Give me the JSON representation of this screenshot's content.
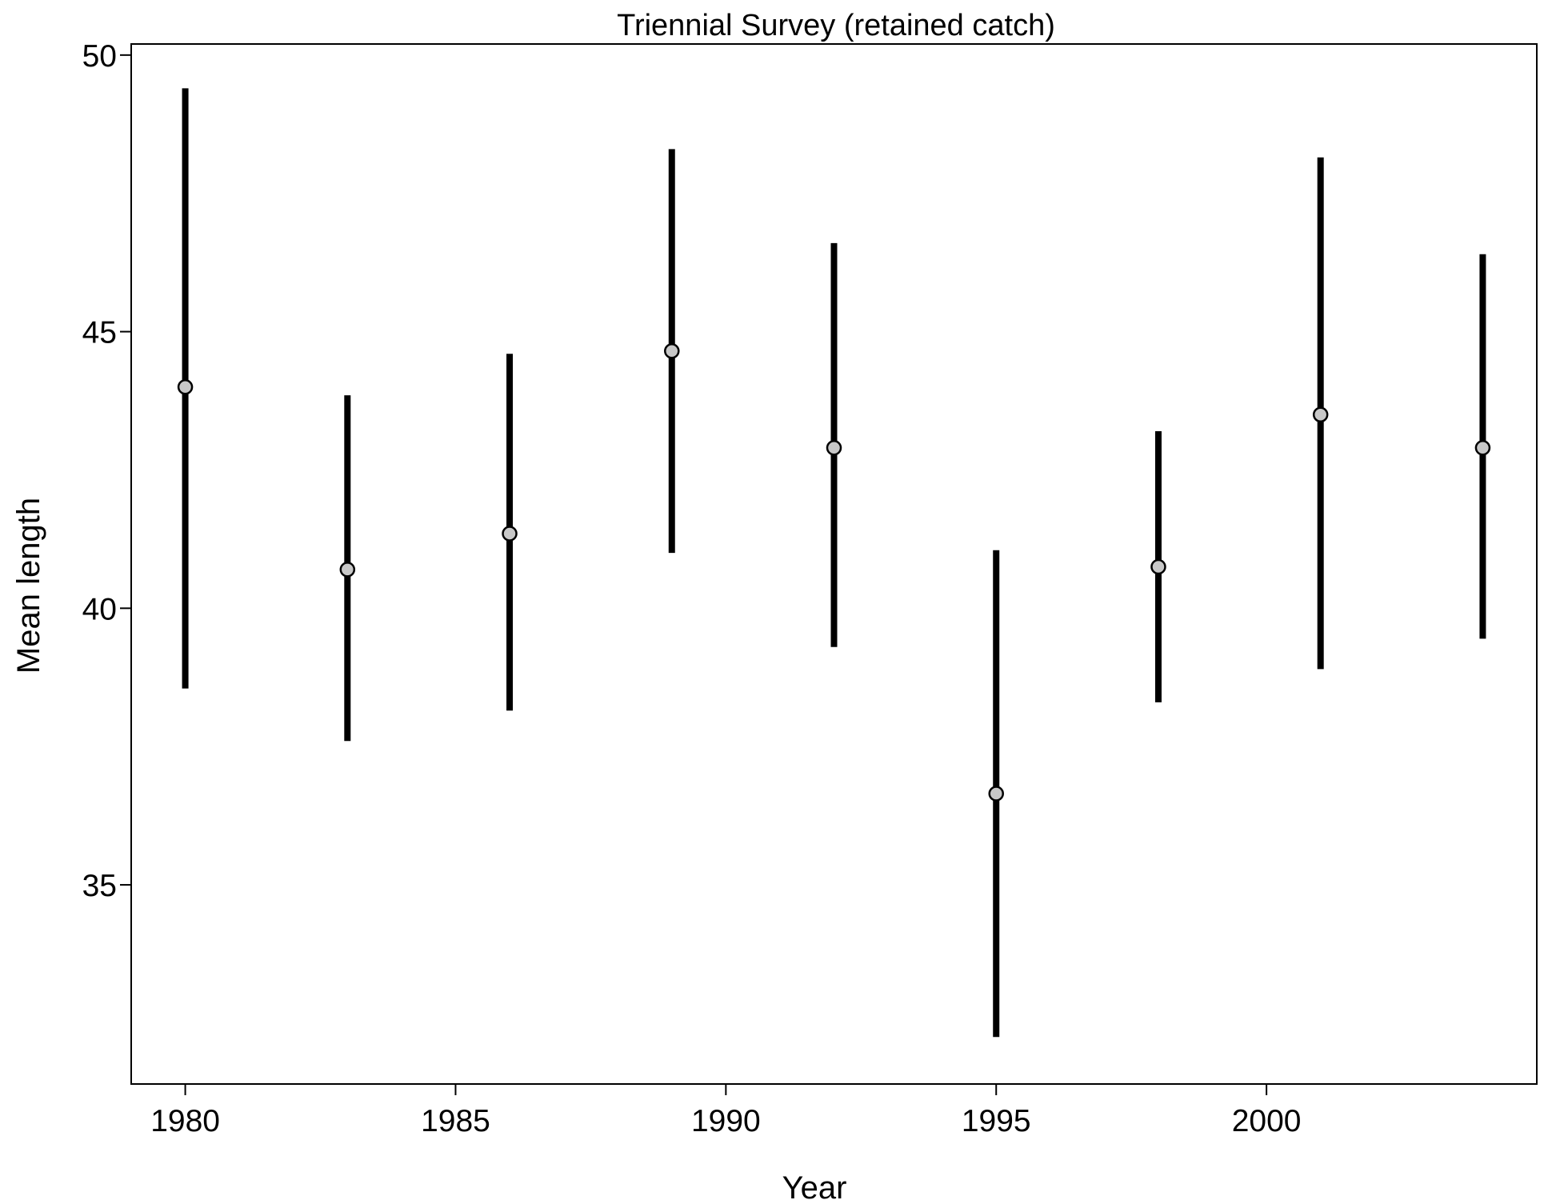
{
  "chart_data": {
    "type": "scatter",
    "title": "Triennial Survey (retained catch)",
    "xlabel": "Year",
    "ylabel": "Mean length",
    "xlim": [
      1979,
      2005
    ],
    "ylim": [
      31.4,
      50.2
    ],
    "xticks": [
      1980,
      1985,
      1990,
      1995,
      2000
    ],
    "yticks": [
      35,
      40,
      45,
      50
    ],
    "grid": false,
    "legend": "none",
    "series": [
      {
        "x": [
          1980,
          1983,
          1986,
          1989,
          1992,
          1995,
          1998,
          2001,
          2004
        ],
        "y": [
          44.0,
          40.7,
          41.35,
          44.65,
          42.9,
          36.65,
          40.75,
          43.5,
          42.9
        ],
        "lower": [
          38.55,
          37.6,
          38.15,
          41.0,
          39.3,
          32.25,
          38.3,
          38.9,
          39.45
        ],
        "upper": [
          49.4,
          43.85,
          44.6,
          48.3,
          46.6,
          41.05,
          43.2,
          48.15,
          46.4
        ]
      }
    ],
    "colors": {
      "point_fill": "#c8c8c8",
      "point_stroke": "#000000",
      "bar": "#000000",
      "axis": "#000000"
    }
  }
}
